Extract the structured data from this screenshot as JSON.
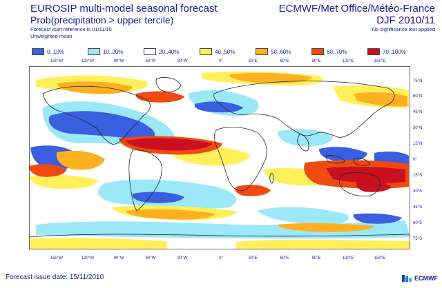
{
  "header": {
    "title_left": "EUROSIP multi-model seasonal forecast",
    "subtitle_left": "Prob(precipitation > upper tercile)",
    "reference_line": "Forecast start reference is 01/11/10",
    "mean_line": "Unweighted mean",
    "title_right": "ECMWF/Met Office/Météo-France",
    "period": "DJF 2010/11",
    "significance": "No significance test applied"
  },
  "legend": [
    {
      "label": "0..10%",
      "color": "#3a5fe0"
    },
    {
      "label": "10..20%",
      "color": "#9be8f8"
    },
    {
      "label": "20..40%",
      "color": "#ffffff"
    },
    {
      "label": "40..50%",
      "color": "#fff05a"
    },
    {
      "label": "50..60%",
      "color": "#ffb020"
    },
    {
      "label": "60..70%",
      "color": "#f04a10"
    },
    {
      "label": "70..100%",
      "color": "#c81020"
    }
  ],
  "longitude_labels": [
    "150°W",
    "120°W",
    "90°W",
    "60°W",
    "30°W",
    "0°",
    "30°E",
    "60°E",
    "90°E",
    "120°E",
    "150°E"
  ],
  "latitude_labels": [
    "75°N",
    "60°N",
    "45°N",
    "30°N",
    "15°N",
    "0°",
    "15°S",
    "30°S",
    "45°S",
    "60°S",
    "75°S"
  ],
  "footer": {
    "issue_date": "Forecast issue date: 15/11/2010",
    "logo_text": "ECMWF"
  }
}
